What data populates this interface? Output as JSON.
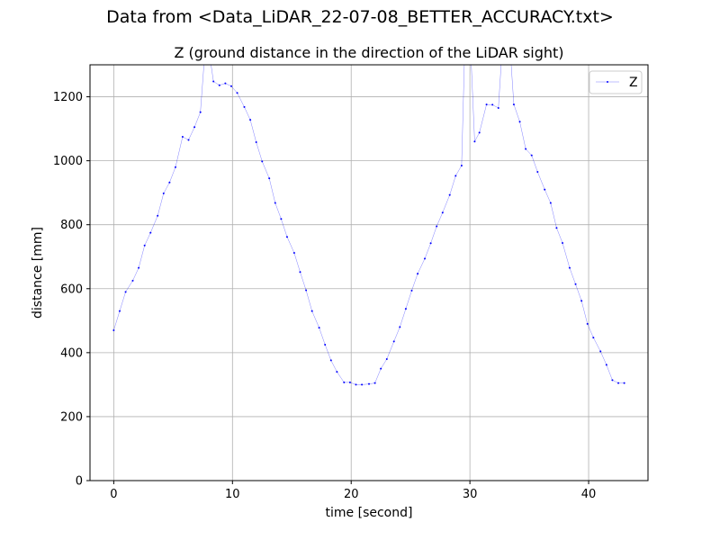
{
  "figure": {
    "suptitle": "Data from <Data_LiDAR_22-07-08_BETTER_ACCURACY.txt>"
  },
  "chart_data": {
    "type": "line",
    "title": "Z (ground distance in the direction of the LiDAR sight)",
    "xlabel": "time [second]",
    "ylabel": "distance [mm]",
    "xlim": [
      -2.0,
      45.0
    ],
    "ylim": [
      0,
      1300
    ],
    "xticks": [
      0,
      10,
      20,
      30,
      40
    ],
    "yticks": [
      0,
      200,
      400,
      600,
      800,
      1000,
      1200
    ],
    "grid": true,
    "legend_position": "top-right",
    "line_color": "#0000ff",
    "series": [
      {
        "name": "Z",
        "x": [
          0,
          0.5,
          1.0,
          1.6,
          2.1,
          2.6,
          3.1,
          3.7,
          4.2,
          4.7,
          5.2,
          5.8,
          6.3,
          6.8,
          7.3,
          7.8,
          8.4,
          8.9,
          9.4,
          9.9,
          10.4,
          11.0,
          11.5,
          12.0,
          12.5,
          13.1,
          13.6,
          14.1,
          14.6,
          15.2,
          15.7,
          16.2,
          16.7,
          17.3,
          17.8,
          18.3,
          18.8,
          19.4,
          19.9,
          20.4,
          20.9,
          21.5,
          22.0,
          22.5,
          23.0,
          23.6,
          24.1,
          24.6,
          25.1,
          25.6,
          26.2,
          26.7,
          27.2,
          27.7,
          28.3,
          28.8,
          29.3,
          29.6,
          30.0,
          30.4,
          30.8,
          31.4,
          31.9,
          32.4,
          32.8,
          33.3,
          33.7,
          34.2,
          34.7,
          35.2,
          35.7,
          36.3,
          36.8,
          37.3,
          37.8,
          38.4,
          38.9,
          39.4,
          39.9,
          40.4,
          41.0,
          41.5,
          42.0,
          42.5,
          43.0
        ],
        "values": [
          470,
          530,
          590,
          625,
          665,
          735,
          775,
          828,
          898,
          932,
          980,
          1075,
          1065,
          1105,
          1152,
          1400,
          1248,
          1236,
          1242,
          1233,
          1212,
          1168,
          1128,
          1058,
          998,
          945,
          868,
          818,
          762,
          712,
          652,
          595,
          530,
          478,
          425,
          376,
          340,
          307,
          307,
          300,
          300,
          302,
          305,
          350,
          380,
          435,
          480,
          537,
          594,
          647,
          694,
          742,
          795,
          838,
          893,
          953,
          985,
          1400,
          1400,
          1060,
          1088,
          1176,
          1175,
          1165,
          1400,
          1400,
          1176,
          1122,
          1037,
          1017,
          965,
          910,
          868,
          790,
          743,
          665,
          614,
          562,
          490,
          447,
          404,
          362,
          314,
          305,
          305
        ]
      }
    ]
  }
}
